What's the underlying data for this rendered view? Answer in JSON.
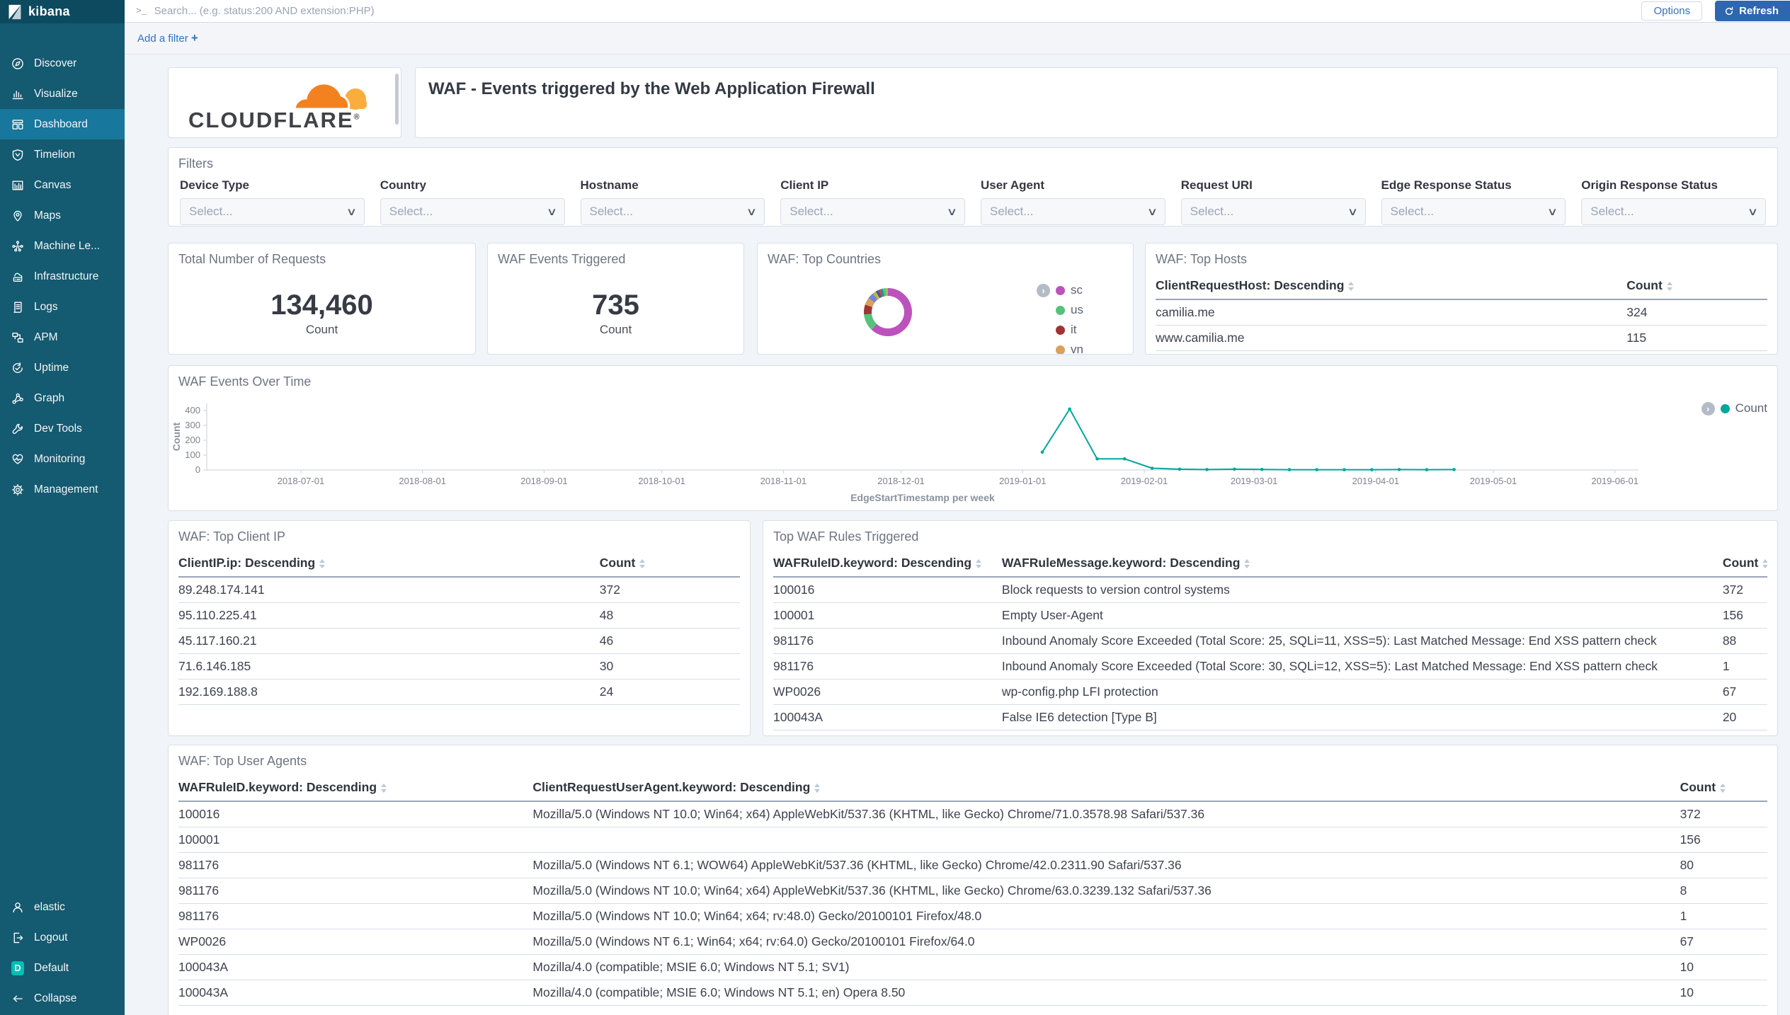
{
  "sidebar": {
    "logo_text": "kibana",
    "items": [
      {
        "label": "Discover",
        "icon": "discover-icon",
        "active": false
      },
      {
        "label": "Visualize",
        "icon": "visualize-icon",
        "active": false
      },
      {
        "label": "Dashboard",
        "icon": "dashboard-icon",
        "active": true
      },
      {
        "label": "Timelion",
        "icon": "timelion-icon",
        "active": false
      },
      {
        "label": "Canvas",
        "icon": "canvas-icon",
        "active": false
      },
      {
        "label": "Maps",
        "icon": "maps-icon",
        "active": false
      },
      {
        "label": "Machine Le...",
        "icon": "machine-learning-icon",
        "active": false
      },
      {
        "label": "Infrastructure",
        "icon": "infrastructure-icon",
        "active": false
      },
      {
        "label": "Logs",
        "icon": "logs-icon",
        "active": false
      },
      {
        "label": "APM",
        "icon": "apm-icon",
        "active": false
      },
      {
        "label": "Uptime",
        "icon": "uptime-icon",
        "active": false
      },
      {
        "label": "Graph",
        "icon": "graph-icon",
        "active": false
      },
      {
        "label": "Dev Tools",
        "icon": "devtools-icon",
        "active": false
      },
      {
        "label": "Monitoring",
        "icon": "monitoring-icon",
        "active": false
      },
      {
        "label": "Management",
        "icon": "management-icon",
        "active": false
      }
    ],
    "bottom_items": [
      {
        "label": "elastic",
        "icon": "user-icon"
      },
      {
        "label": "Logout",
        "icon": "logout-icon"
      },
      {
        "label": "Default",
        "icon": "space-default-icon",
        "badge": "D",
        "badge_color": "#00bfb3"
      },
      {
        "label": "Collapse",
        "icon": "collapse-icon"
      }
    ]
  },
  "topbar": {
    "search_placeholder": "Search... (e.g. status:200 AND extension:PHP)",
    "options_label": "Options",
    "refresh_label": "Refresh"
  },
  "filter_bar": {
    "add_filter_label": "Add a filter",
    "plus": "+"
  },
  "header_panels": {
    "brand_wordmark": "CLOUDFLARE",
    "title": "WAF - Events triggered by the Web Application Firewall"
  },
  "filters": {
    "title": "Filters",
    "select_placeholder": "Select...",
    "fields": [
      "Device Type",
      "Country",
      "Hostname",
      "Client IP",
      "User Agent",
      "Request URI",
      "Edge Response Status",
      "Origin Response Status"
    ]
  },
  "metrics": [
    {
      "title": "Total Number of Requests",
      "value": "134,460",
      "label": "Count"
    },
    {
      "title": "WAF Events Triggered",
      "value": "735",
      "label": "Count"
    }
  ],
  "panels": {
    "top_countries_title": "WAF: Top Countries",
    "top_hosts_title": "WAF: Top Hosts",
    "events_over_time_title": "WAF Events Over Time",
    "top_client_ip_title": "WAF: Top Client IP",
    "top_waf_rules_title": "Top WAF Rules Triggered",
    "top_user_agents_title": "WAF: Top User Agents"
  },
  "tables": {
    "top_hosts": {
      "headers": [
        "ClientRequestHost: Descending",
        "Count"
      ],
      "rows": [
        [
          "camilia.me",
          "324"
        ],
        [
          "www.camilia.me",
          "115"
        ]
      ]
    },
    "top_client_ip": {
      "headers": [
        "ClientIP.ip: Descending",
        "Count"
      ],
      "rows": [
        [
          "89.248.174.141",
          "372"
        ],
        [
          "95.110.225.41",
          "48"
        ],
        [
          "45.117.160.21",
          "46"
        ],
        [
          "71.6.146.185",
          "30"
        ],
        [
          "192.169.188.8",
          "24"
        ]
      ]
    },
    "top_waf_rules": {
      "headers": [
        "WAFRuleID.keyword: Descending",
        "WAFRuleMessage.keyword: Descending",
        "Count"
      ],
      "rows": [
        [
          "100016",
          "Block requests to version control systems",
          "372"
        ],
        [
          "100001",
          "Empty User-Agent",
          "156"
        ],
        [
          "981176",
          "Inbound Anomaly Score Exceeded (Total Score: 25, SQLi=11, XSS=5): Last Matched Message: End XSS pattern check",
          "88"
        ],
        [
          "981176",
          "Inbound Anomaly Score Exceeded (Total Score: 30, SQLi=12, XSS=5): Last Matched Message: End XSS pattern check",
          "1"
        ],
        [
          "WP0026",
          "wp-config.php LFI protection",
          "67"
        ],
        [
          "100043A",
          "False IE6 detection [Type B]",
          "20"
        ]
      ]
    },
    "top_user_agents": {
      "headers": [
        "WAFRuleID.keyword: Descending",
        "ClientRequestUserAgent.keyword: Descending",
        "Count"
      ],
      "rows": [
        [
          "100016",
          "Mozilla/5.0 (Windows NT 10.0; Win64; x64) AppleWebKit/537.36 (KHTML, like Gecko) Chrome/71.0.3578.98 Safari/537.36",
          "372"
        ],
        [
          "100001",
          "",
          "156"
        ],
        [
          "981176",
          "Mozilla/5.0 (Windows NT 6.1; WOW64) AppleWebKit/537.36 (KHTML, like Gecko) Chrome/42.0.2311.90 Safari/537.36",
          "80"
        ],
        [
          "981176",
          "Mozilla/5.0 (Windows NT 10.0; Win64; x64) AppleWebKit/537.36 (KHTML, like Gecko) Chrome/63.0.3239.132 Safari/537.36",
          "8"
        ],
        [
          "981176",
          "Mozilla/5.0 (Windows NT 10.0; Win64; x64; rv:48.0) Gecko/20100101 Firefox/48.0",
          "1"
        ],
        [
          "WP0026",
          "Mozilla/5.0 (Windows NT 6.1; Win64; x64; rv:64.0) Gecko/20100101 Firefox/64.0",
          "67"
        ],
        [
          "100043A",
          "Mozilla/4.0 (compatible; MSIE 6.0; Windows NT 5.1; SV1)",
          "10"
        ],
        [
          "100043A",
          "Mozilla/4.0 (compatible; MSIE 6.0; Windows NT 5.1; en) Opera 8.50",
          "10"
        ]
      ]
    }
  },
  "chart_data": [
    {
      "type": "pie",
      "title": "WAF: Top Countries",
      "donut": true,
      "legend_position": "right",
      "segments": [
        {
          "label": "sc",
          "value": 455,
          "color": "#bc52bc"
        },
        {
          "label": "us",
          "value": 85,
          "color": "#57c17b"
        },
        {
          "label": "it",
          "value": 48,
          "color": "#9e3533"
        },
        {
          "label": "vn",
          "value": 37,
          "color": "#d8a25d"
        },
        {
          "label": "",
          "value": 30,
          "color": "#6f87d8"
        },
        {
          "label": "",
          "value": 18,
          "color": "#c9b33c"
        },
        {
          "label": "",
          "value": 14,
          "color": "#3857c0"
        },
        {
          "label": "",
          "value": 11,
          "color": "#cc4b40"
        },
        {
          "label": "",
          "value": 11,
          "color": "#00a69b"
        },
        {
          "label": "",
          "value": 12,
          "color": "#57c17b"
        },
        {
          "label": "",
          "value": 14,
          "color": "#8bc860"
        }
      ]
    },
    {
      "type": "line",
      "title": "WAF Events Over Time",
      "xlabel": "EdgeStartTimestamp per week",
      "ylabel": "Count",
      "legend": [
        {
          "name": "Count",
          "color": "#00a69b"
        }
      ],
      "x_domain": [
        "2018-06-07",
        "2019-06-07"
      ],
      "x_ticks": [
        "2018-07-01",
        "2018-08-01",
        "2018-09-01",
        "2018-10-01",
        "2018-11-01",
        "2018-12-01",
        "2019-01-01",
        "2019-02-01",
        "2019-03-01",
        "2019-04-01",
        "2019-05-01",
        "2019-06-01"
      ],
      "y_ticks": [
        0,
        100,
        200,
        300,
        400
      ],
      "ylim": [
        0,
        450
      ],
      "points": [
        [
          "2019-01-06",
          120
        ],
        [
          "2019-01-13",
          410
        ],
        [
          "2019-01-20",
          75
        ],
        [
          "2019-01-27",
          75
        ],
        [
          "2019-02-03",
          12
        ],
        [
          "2019-02-10",
          5
        ],
        [
          "2019-02-17",
          3
        ],
        [
          "2019-02-24",
          5
        ],
        [
          "2019-03-03",
          4
        ],
        [
          "2019-03-10",
          2
        ],
        [
          "2019-03-17",
          2
        ],
        [
          "2019-03-24",
          2
        ],
        [
          "2019-03-31",
          2
        ],
        [
          "2019-04-07",
          3
        ],
        [
          "2019-04-14",
          2
        ],
        [
          "2019-04-21",
          3
        ]
      ]
    }
  ]
}
